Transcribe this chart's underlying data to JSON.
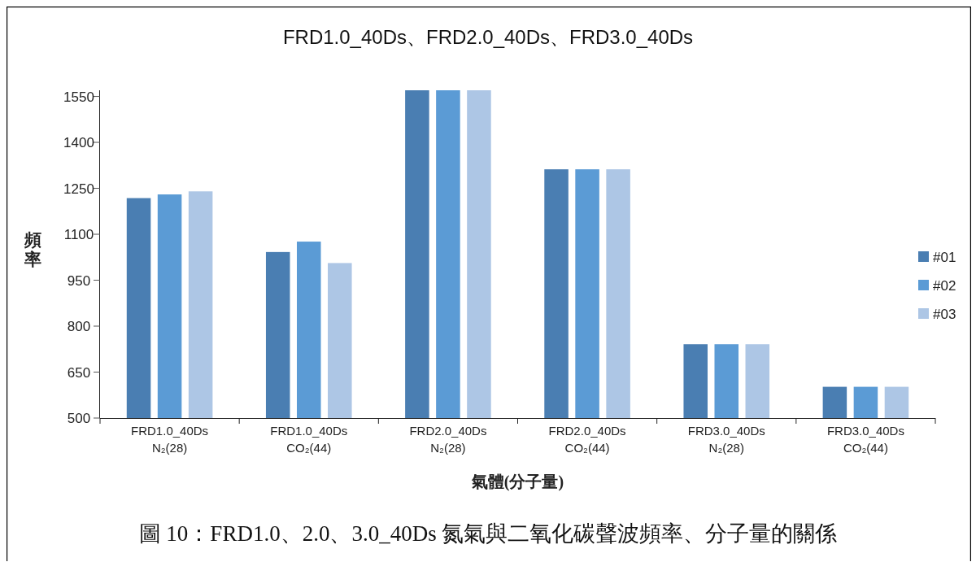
{
  "chart_data": {
    "type": "bar",
    "title": "FRD1.0_40Ds、FRD2.0_40Ds、FRD3.0_40Ds",
    "xlabel": "氣體(分子量)",
    "ylabel": "頻率",
    "categories": [
      "FRD1.0_40Ds\nN₂(28)",
      "FRD1.0_40Ds\nCO₂(44)",
      "FRD2.0_40Ds\nN₂(28)",
      "FRD2.0_40Ds\nCO₂(44)",
      "FRD3.0_40Ds\nN₂(28)",
      "FRD3.0_40Ds\nCO₂(44)"
    ],
    "series": [
      {
        "name": "#01",
        "color": "#4a7eb2",
        "values": [
          1218,
          1042,
          1570,
          1312,
          741,
          602
        ]
      },
      {
        "name": "#02",
        "color": "#5b9bd5",
        "values": [
          1230,
          1076,
          1570,
          1312,
          741,
          602
        ]
      },
      {
        "name": "#03",
        "color": "#adc6e5",
        "values": [
          1240,
          1006,
          1570,
          1312,
          741,
          602
        ]
      }
    ],
    "ylim": [
      500,
      1570
    ],
    "yticks": [
      500,
      650,
      800,
      950,
      1100,
      1250,
      1400,
      1550
    ],
    "legend": "right",
    "annotations": [
      "圖 10：FRD1.0、2.0、3.0_40Ds 氮氣與二氧化碳聲波頻率、分子量的關係"
    ]
  }
}
